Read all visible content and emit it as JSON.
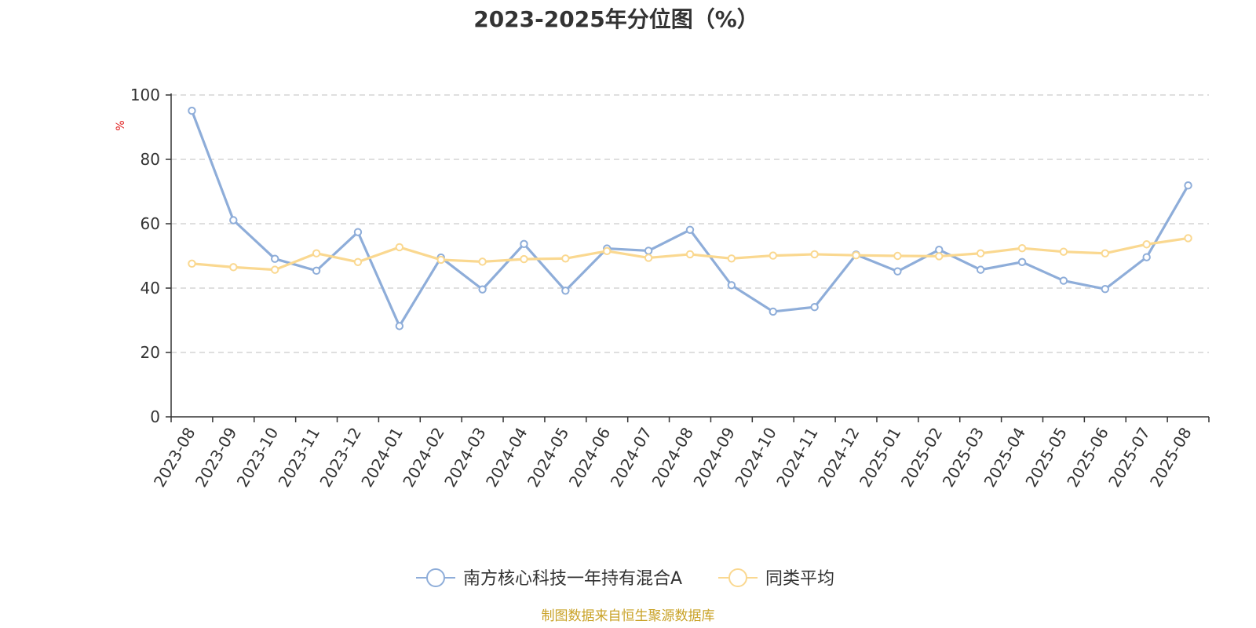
{
  "chart_data": {
    "type": "line",
    "title": "2023-2025年分位图（%）",
    "ylabel": "%",
    "ylim": [
      0,
      100
    ],
    "yticks": [
      0,
      20,
      40,
      60,
      80,
      100
    ],
    "grid": true,
    "legend_position": "bottom",
    "categories": [
      "2023-08",
      "2023-09",
      "2023-10",
      "2023-11",
      "2023-12",
      "2024-01",
      "2024-02",
      "2024-03",
      "2024-04",
      "2024-05",
      "2024-06",
      "2024-07",
      "2024-08",
      "2024-09",
      "2024-10",
      "2024-11",
      "2024-12",
      "2025-01",
      "2025-02",
      "2025-03",
      "2025-04",
      "2025-05",
      "2025-06",
      "2025-07",
      "2025-08"
    ],
    "series": [
      {
        "name": "南方核心科技一年持有混合A",
        "color": "#8eadd9",
        "values": [
          95.1,
          61.1,
          49.1,
          45.4,
          57.4,
          28.2,
          49.5,
          39.6,
          53.7,
          39.2,
          52.3,
          51.6,
          58.1,
          40.9,
          32.7,
          34.1,
          50.4,
          45.2,
          51.9,
          45.7,
          48.1,
          42.3,
          39.7,
          49.6,
          71.9
        ]
      },
      {
        "name": "同类平均",
        "color": "#fad890",
        "values": [
          47.6,
          46.5,
          45.7,
          50.8,
          48.1,
          52.7,
          48.8,
          48.2,
          49.0,
          49.2,
          51.5,
          49.4,
          50.5,
          49.2,
          50.1,
          50.5,
          50.2,
          50.0,
          49.9,
          50.8,
          52.4,
          51.3,
          50.8,
          53.6,
          55.5
        ]
      }
    ]
  },
  "source_text": "制图数据来自恒生聚源数据库",
  "colors": {
    "axis": "#333333",
    "grid": "#cccccc",
    "ylabel": "#e02020",
    "source": "#c9a227"
  }
}
